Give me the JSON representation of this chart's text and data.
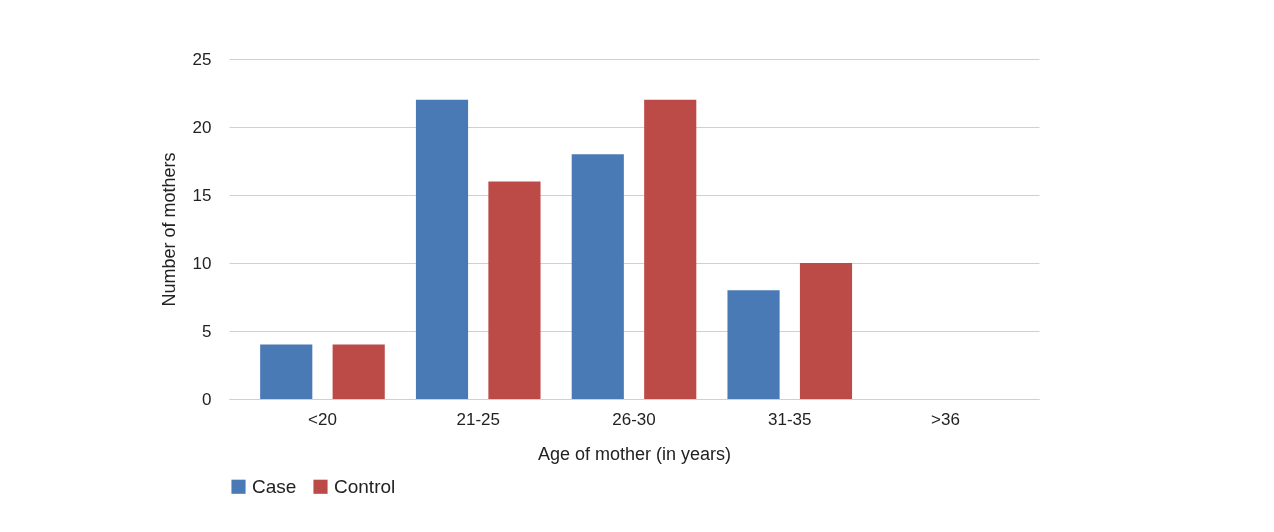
{
  "chart_data": {
    "type": "bar",
    "xlabel": "Age of mother (in years)",
    "ylabel": "Number of mothers",
    "categories": [
      "<20",
      "21-25",
      "26-30",
      "31-35",
      ">36"
    ],
    "series": [
      {
        "name": "Case",
        "color": "#4a7ab5",
        "values": [
          4,
          22,
          18,
          8,
          0
        ]
      },
      {
        "name": "Control",
        "color": "#bc4b48",
        "values": [
          4,
          16,
          22,
          10,
          0
        ]
      }
    ],
    "ylim": [
      0,
      25
    ],
    "yticks": [
      0,
      5,
      10,
      15,
      20,
      25
    ],
    "grid": "y",
    "legend": "bottom"
  }
}
